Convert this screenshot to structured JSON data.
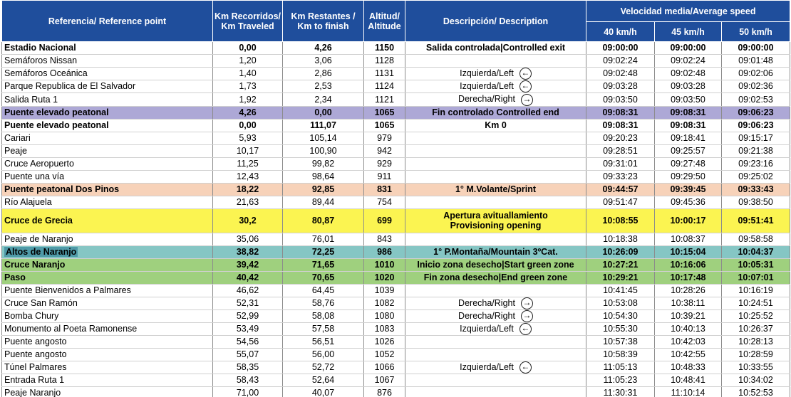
{
  "header": {
    "reference": "Referencia/ Reference point",
    "km_traveled": "Km Recorridos/ Km Traveled",
    "km_to_finish": "Km Restantes / Km to finish",
    "altitude": "Altitud/ Altitude",
    "description": "Descripción/ Description",
    "speed_group": "Velocidad media/Average speed",
    "speed_40": "40 km/h",
    "speed_45": "45 km/h",
    "speed_50": "50 km/h"
  },
  "rows": [
    {
      "ref": "Estadio Nacional",
      "km": "0,00",
      "rest": "4,26",
      "alt": "1150",
      "desc": "Salida controlada|Controlled exit",
      "s40": "09:00:00",
      "s45": "09:00:00",
      "s50": "09:00:00",
      "style": "bold",
      "arrow": ""
    },
    {
      "ref": "Semáforos Nissan",
      "km": "1,20",
      "rest": "3,06",
      "alt": "1128",
      "desc": "",
      "s40": "09:02:24",
      "s45": "09:02:24",
      "s50": "09:01:48",
      "style": "",
      "arrow": ""
    },
    {
      "ref": "Semáforos Oceánica",
      "km": "1,40",
      "rest": "2,86",
      "alt": "1131",
      "desc": "Izquierda/Left",
      "s40": "09:02:48",
      "s45": "09:02:48",
      "s50": "09:02:06",
      "style": "",
      "arrow": "left-arrow-icon"
    },
    {
      "ref": "Parque Republica de El Salvador",
      "km": "1,73",
      "rest": "2,53",
      "alt": "1124",
      "desc": "Izquierda/Left",
      "s40": "09:03:28",
      "s45": "09:03:28",
      "s50": "09:02:36",
      "style": "",
      "arrow": "left-arrow-icon"
    },
    {
      "ref": "Salida Ruta 1",
      "km": "1,92",
      "rest": "2,34",
      "alt": "1121",
      "desc": "Derecha/Right",
      "s40": "09:03:50",
      "s45": "09:03:50",
      "s50": "09:02:53",
      "style": "",
      "arrow": "right-arrow-icon"
    },
    {
      "ref": "Puente elevado peatonal",
      "km": "4,26",
      "rest": "0,00",
      "alt": "1065",
      "desc": "Fin controlado   Controlled end",
      "s40": "09:08:31",
      "s45": "09:08:31",
      "s50": "09:06:23",
      "style": "bold purple",
      "arrow": ""
    },
    {
      "ref": "Puente elevado peatonal",
      "km": "0,00",
      "rest": "111,07",
      "alt": "1065",
      "desc": "Km 0",
      "s40": "09:08:31",
      "s45": "09:08:31",
      "s50": "09:06:23",
      "style": "bold",
      "arrow": ""
    },
    {
      "ref": "Cariari",
      "km": "5,93",
      "rest": "105,14",
      "alt": "979",
      "desc": "",
      "s40": "09:20:23",
      "s45": "09:18:41",
      "s50": "09:15:17",
      "style": "",
      "arrow": ""
    },
    {
      "ref": "Peaje",
      "km": "10,17",
      "rest": "100,90",
      "alt": "942",
      "desc": "",
      "s40": "09:28:51",
      "s45": "09:25:57",
      "s50": "09:21:38",
      "style": "",
      "arrow": ""
    },
    {
      "ref": "Cruce Aeropuerto",
      "km": "11,25",
      "rest": "99,82",
      "alt": "929",
      "desc": "",
      "s40": "09:31:01",
      "s45": "09:27:48",
      "s50": "09:23:16",
      "style": "",
      "arrow": ""
    },
    {
      "ref": "Puente una vía",
      "km": "12,43",
      "rest": "98,64",
      "alt": "911",
      "desc": "",
      "s40": "09:33:23",
      "s45": "09:29:50",
      "s50": "09:25:02",
      "style": "",
      "arrow": ""
    },
    {
      "ref": "Puente peatonal Dos Pinos",
      "km": "18,22",
      "rest": "92,85",
      "alt": "831",
      "desc": "1° M.Volante/Sprint",
      "s40": "09:44:57",
      "s45": "09:39:45",
      "s50": "09:33:43",
      "style": "bold peach",
      "arrow": ""
    },
    {
      "ref": "Río Alajuela",
      "km": "21,63",
      "rest": "89,44",
      "alt": "754",
      "desc": "",
      "s40": "09:51:47",
      "s45": "09:45:36",
      "s50": "09:38:50",
      "style": "",
      "arrow": ""
    },
    {
      "ref": "Cruce de Grecia",
      "km": "30,2",
      "rest": "80,87",
      "alt": "699",
      "desc": "Apertura avituallamiento\nProvisioning opening",
      "s40": "10:08:55",
      "s45": "10:00:17",
      "s50": "09:51:41",
      "style": "bold yellow tall",
      "arrow": ""
    },
    {
      "ref": "Peaje de Naranjo",
      "km": "35,06",
      "rest": "76,01",
      "alt": "843",
      "desc": "",
      "s40": "10:18:38",
      "s45": "10:08:37",
      "s50": "09:58:58",
      "style": "",
      "arrow": ""
    },
    {
      "ref": "Altos de Naranjo",
      "km": "38,82",
      "rest": "72,25",
      "alt": "986",
      "desc": "1° P.Montaña/Mountain 3ºCat.",
      "s40": "10:26:09",
      "s45": "10:15:04",
      "s50": "10:04:37",
      "style": "bold teal",
      "arrow": ""
    },
    {
      "ref": "Cruce Naranjo",
      "km": "39,42",
      "rest": "71,65",
      "alt": "1010",
      "desc": "Inicio zona desecho|Start green zone",
      "s40": "10:27:21",
      "s45": "10:16:06",
      "s50": "10:05:31",
      "style": "bold green",
      "arrow": ""
    },
    {
      "ref": "Paso",
      "km": "40,42",
      "rest": "70,65",
      "alt": "1020",
      "desc": "Fin zona desecho|End green zone",
      "s40": "10:29:21",
      "s45": "10:17:48",
      "s50": "10:07:01",
      "style": "bold green",
      "arrow": ""
    },
    {
      "ref": "Puente Bienvenidos a Palmares",
      "km": "46,62",
      "rest": "64,45",
      "alt": "1039",
      "desc": "",
      "s40": "10:41:45",
      "s45": "10:28:26",
      "s50": "10:16:19",
      "style": "",
      "arrow": ""
    },
    {
      "ref": "Cruce San Ramón",
      "km": "52,31",
      "rest": "58,76",
      "alt": "1082",
      "desc": "Derecha/Right",
      "s40": "10:53:08",
      "s45": "10:38:11",
      "s50": "10:24:51",
      "style": "",
      "arrow": "right-arrow-icon"
    },
    {
      "ref": "Bomba Chury",
      "km": "52,99",
      "rest": "58,08",
      "alt": "1080",
      "desc": "Derecha/Right",
      "s40": "10:54:30",
      "s45": "10:39:21",
      "s50": "10:25:52",
      "style": "",
      "arrow": "right-arrow-icon"
    },
    {
      "ref": "Monumento al Poeta Ramonense",
      "km": "53,49",
      "rest": "57,58",
      "alt": "1083",
      "desc": "Izquierda/Left",
      "s40": "10:55:30",
      "s45": "10:40:13",
      "s50": "10:26:37",
      "style": "",
      "arrow": "left-arrow-icon"
    },
    {
      "ref": "Puente angosto",
      "km": "54,56",
      "rest": "56,51",
      "alt": "1026",
      "desc": "",
      "s40": "10:57:38",
      "s45": "10:42:03",
      "s50": "10:28:13",
      "style": "",
      "arrow": ""
    },
    {
      "ref": "Puente angosto",
      "km": "55,07",
      "rest": "56,00",
      "alt": "1052",
      "desc": "",
      "s40": "10:58:39",
      "s45": "10:42:55",
      "s50": "10:28:59",
      "style": "",
      "arrow": ""
    },
    {
      "ref": "Túnel Palmares",
      "km": "58,35",
      "rest": "52,72",
      "alt": "1066",
      "desc": "Izquierda/Left",
      "s40": "11:05:13",
      "s45": "10:48:33",
      "s50": "10:33:55",
      "style": "",
      "arrow": "left-arrow-icon"
    },
    {
      "ref": "Entrada Ruta 1",
      "km": "58,43",
      "rest": "52,64",
      "alt": "1067",
      "desc": "",
      "s40": "11:05:23",
      "s45": "10:48:41",
      "s50": "10:34:02",
      "style": "",
      "arrow": ""
    },
    {
      "ref": "Peaje Naranjo",
      "km": "71,00",
      "rest": "40,07",
      "alt": "876",
      "desc": "",
      "s40": "11:30:31",
      "s45": "11:10:14",
      "s50": "10:52:53",
      "style": "",
      "arrow": ""
    }
  ],
  "arrow_glyphs": {
    "left-arrow-icon": "←",
    "right-arrow-icon": "→"
  }
}
